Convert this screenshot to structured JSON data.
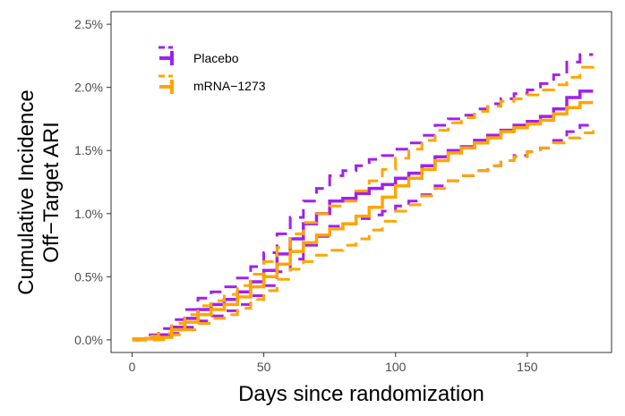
{
  "chart_data": {
    "type": "line",
    "title": "",
    "xlabel": "Days since randomization",
    "ylabel": [
      "Cumulative Incidence",
      "Off−Target ARI"
    ],
    "xlim": [
      -8,
      182
    ],
    "ylim": [
      -0.1,
      2.6
    ],
    "x_ticks": [
      0,
      50,
      100,
      150
    ],
    "x_tick_labels": [
      "0",
      "50",
      "100",
      "150"
    ],
    "y_ticks": [
      0,
      0.5,
      1.0,
      1.5,
      2.0,
      2.5
    ],
    "y_tick_labels": [
      "0.0%",
      "0.5%",
      "1.0%",
      "1.5%",
      "2.0%",
      "2.5%"
    ],
    "grid": false,
    "legend_position": "top-left",
    "series": [
      {
        "name": "Placebo",
        "color": "#A020F0",
        "estimate": [
          [
            0,
            0
          ],
          [
            5,
            0.01
          ],
          [
            10,
            0.04
          ],
          [
            15,
            0.1
          ],
          [
            20,
            0.17
          ],
          [
            25,
            0.24
          ],
          [
            30,
            0.28
          ],
          [
            35,
            0.32
          ],
          [
            40,
            0.38
          ],
          [
            45,
            0.46
          ],
          [
            50,
            0.55
          ],
          [
            55,
            0.68
          ],
          [
            60,
            0.8
          ],
          [
            65,
            0.92
          ],
          [
            70,
            1.0
          ],
          [
            75,
            1.1
          ],
          [
            80,
            1.12
          ],
          [
            85,
            1.16
          ],
          [
            90,
            1.2
          ],
          [
            95,
            1.23
          ],
          [
            100,
            1.28
          ],
          [
            105,
            1.32
          ],
          [
            110,
            1.38
          ],
          [
            115,
            1.45
          ],
          [
            120,
            1.5
          ],
          [
            125,
            1.53
          ],
          [
            130,
            1.58
          ],
          [
            135,
            1.62
          ],
          [
            140,
            1.66
          ],
          [
            145,
            1.7
          ],
          [
            150,
            1.73
          ],
          [
            155,
            1.77
          ],
          [
            160,
            1.83
          ],
          [
            165,
            1.92
          ],
          [
            170,
            1.97
          ],
          [
            175,
            1.97
          ]
        ],
        "upper": [
          [
            0,
            0.01
          ],
          [
            5,
            0.04
          ],
          [
            10,
            0.09
          ],
          [
            15,
            0.16
          ],
          [
            20,
            0.24
          ],
          [
            25,
            0.33
          ],
          [
            30,
            0.38
          ],
          [
            35,
            0.42
          ],
          [
            40,
            0.49
          ],
          [
            45,
            0.58
          ],
          [
            50,
            0.69
          ],
          [
            55,
            0.84
          ],
          [
            60,
            0.97
          ],
          [
            65,
            1.1
          ],
          [
            70,
            1.2
          ],
          [
            75,
            1.3
          ],
          [
            80,
            1.34
          ],
          [
            85,
            1.38
          ],
          [
            90,
            1.43
          ],
          [
            95,
            1.46
          ],
          [
            100,
            1.51
          ],
          [
            105,
            1.56
          ],
          [
            110,
            1.62
          ],
          [
            115,
            1.7
          ],
          [
            120,
            1.75
          ],
          [
            125,
            1.78
          ],
          [
            130,
            1.83
          ],
          [
            135,
            1.87
          ],
          [
            140,
            1.91
          ],
          [
            145,
            1.95
          ],
          [
            150,
            1.98
          ],
          [
            155,
            2.03
          ],
          [
            160,
            2.1
          ],
          [
            165,
            2.2
          ],
          [
            170,
            2.26
          ],
          [
            175,
            2.26
          ]
        ],
        "lower": [
          [
            0,
            0
          ],
          [
            5,
            0
          ],
          [
            10,
            0.01
          ],
          [
            15,
            0.05
          ],
          [
            20,
            0.1
          ],
          [
            25,
            0.15
          ],
          [
            30,
            0.19
          ],
          [
            35,
            0.23
          ],
          [
            40,
            0.28
          ],
          [
            45,
            0.35
          ],
          [
            50,
            0.43
          ],
          [
            55,
            0.54
          ],
          [
            60,
            0.64
          ],
          [
            65,
            0.75
          ],
          [
            70,
            0.82
          ],
          [
            75,
            0.9
          ],
          [
            80,
            0.92
          ],
          [
            85,
            0.96
          ],
          [
            90,
            0.99
          ],
          [
            95,
            1.02
          ],
          [
            100,
            1.06
          ],
          [
            105,
            1.1
          ],
          [
            110,
            1.15
          ],
          [
            115,
            1.22
          ],
          [
            120,
            1.26
          ],
          [
            125,
            1.3
          ],
          [
            130,
            1.34
          ],
          [
            135,
            1.38
          ],
          [
            140,
            1.42
          ],
          [
            145,
            1.46
          ],
          [
            150,
            1.49
          ],
          [
            155,
            1.52
          ],
          [
            160,
            1.58
          ],
          [
            165,
            1.65
          ],
          [
            170,
            1.7
          ],
          [
            175,
            1.7
          ]
        ]
      },
      {
        "name": "mRNA−1273",
        "color": "#FFA500",
        "estimate": [
          [
            0,
            0
          ],
          [
            5,
            0.01
          ],
          [
            10,
            0.02
          ],
          [
            15,
            0.08
          ],
          [
            20,
            0.14
          ],
          [
            25,
            0.2
          ],
          [
            30,
            0.24
          ],
          [
            35,
            0.28
          ],
          [
            40,
            0.34
          ],
          [
            45,
            0.42
          ],
          [
            50,
            0.5
          ],
          [
            55,
            0.6
          ],
          [
            60,
            0.7
          ],
          [
            65,
            0.77
          ],
          [
            70,
            0.83
          ],
          [
            75,
            0.88
          ],
          [
            80,
            0.92
          ],
          [
            85,
            0.98
          ],
          [
            90,
            1.05
          ],
          [
            95,
            1.13
          ],
          [
            100,
            1.22
          ],
          [
            105,
            1.28
          ],
          [
            110,
            1.35
          ],
          [
            115,
            1.42
          ],
          [
            120,
            1.48
          ],
          [
            125,
            1.52
          ],
          [
            130,
            1.56
          ],
          [
            135,
            1.6
          ],
          [
            140,
            1.65
          ],
          [
            145,
            1.68
          ],
          [
            150,
            1.71
          ],
          [
            155,
            1.74
          ],
          [
            160,
            1.79
          ],
          [
            165,
            1.84
          ],
          [
            170,
            1.88
          ],
          [
            175,
            1.88
          ]
        ],
        "upper": [
          [
            0,
            0.01
          ],
          [
            5,
            0.03
          ],
          [
            10,
            0.05
          ],
          [
            15,
            0.13
          ],
          [
            20,
            0.2
          ],
          [
            25,
            0.27
          ],
          [
            30,
            0.31
          ],
          [
            35,
            0.36
          ],
          [
            40,
            0.43
          ],
          [
            45,
            0.52
          ],
          [
            50,
            0.62
          ],
          [
            55,
            0.73
          ],
          [
            60,
            0.84
          ],
          [
            65,
            0.93
          ],
          [
            70,
            1.0
          ],
          [
            75,
            1.06
          ],
          [
            80,
            1.1
          ],
          [
            85,
            1.18
          ],
          [
            90,
            1.26
          ],
          [
            95,
            1.35
          ],
          [
            100,
            1.44
          ],
          [
            105,
            1.51
          ],
          [
            110,
            1.58
          ],
          [
            115,
            1.66
          ],
          [
            120,
            1.72
          ],
          [
            125,
            1.76
          ],
          [
            130,
            1.81
          ],
          [
            135,
            1.85
          ],
          [
            140,
            1.89
          ],
          [
            145,
            1.91
          ],
          [
            150,
            1.94
          ],
          [
            155,
            1.98
          ],
          [
            160,
            2.02
          ],
          [
            165,
            2.08
          ],
          [
            170,
            2.16
          ],
          [
            175,
            2.18
          ]
        ],
        "lower": [
          [
            0,
            0
          ],
          [
            5,
            0
          ],
          [
            10,
            0
          ],
          [
            15,
            0.04
          ],
          [
            20,
            0.08
          ],
          [
            25,
            0.13
          ],
          [
            30,
            0.17
          ],
          [
            35,
            0.2
          ],
          [
            40,
            0.25
          ],
          [
            45,
            0.32
          ],
          [
            50,
            0.39
          ],
          [
            55,
            0.48
          ],
          [
            60,
            0.56
          ],
          [
            65,
            0.62
          ],
          [
            70,
            0.67
          ],
          [
            75,
            0.71
          ],
          [
            80,
            0.75
          ],
          [
            85,
            0.8
          ],
          [
            90,
            0.87
          ],
          [
            95,
            0.94
          ],
          [
            100,
            1.02
          ],
          [
            105,
            1.07
          ],
          [
            110,
            1.14
          ],
          [
            115,
            1.2
          ],
          [
            120,
            1.26
          ],
          [
            125,
            1.3
          ],
          [
            130,
            1.34
          ],
          [
            135,
            1.38
          ],
          [
            140,
            1.42
          ],
          [
            145,
            1.45
          ],
          [
            150,
            1.49
          ],
          [
            155,
            1.52
          ],
          [
            160,
            1.56
          ],
          [
            165,
            1.6
          ],
          [
            170,
            1.64
          ],
          [
            175,
            1.66
          ]
        ]
      }
    ]
  }
}
